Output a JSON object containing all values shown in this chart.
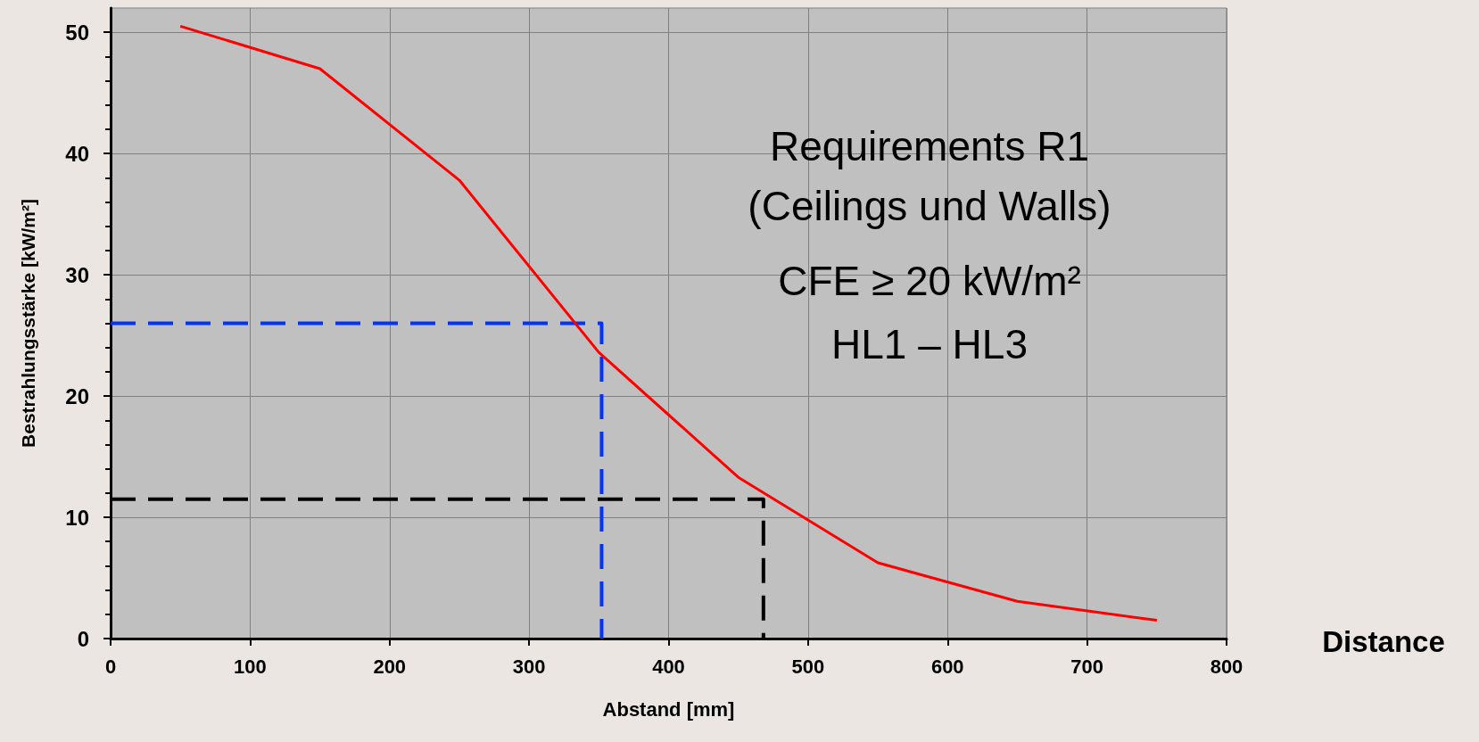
{
  "chart_data": {
    "type": "line",
    "xlabel": "Abstand [mm]",
    "ylabel": "Bestrahlungsstärke [kW/m²]",
    "xlim": [
      0,
      800
    ],
    "xticks": [
      0,
      100,
      200,
      300,
      400,
      500,
      600,
      700,
      800
    ],
    "ylim": [
      0,
      52
    ],
    "yticks": [
      0,
      10,
      20,
      30,
      40,
      50
    ],
    "grid": true,
    "marker": "none",
    "series": [
      {
        "color": "#ff0000",
        "line_style": "solid",
        "x": [
          50,
          150,
          250,
          350,
          450,
          550,
          650,
          750
        ],
        "values": [
          50.5,
          47,
          37.8,
          23.6,
          13.3,
          6.25,
          3.07,
          1.5
        ]
      },
      {
        "color": "#0033ff",
        "line_style": "dashed",
        "x": [
          0,
          352,
          352
        ],
        "values": [
          26,
          26,
          0
        ]
      },
      {
        "color": "#000000",
        "line_style": "dashed",
        "x": [
          0,
          468,
          468
        ],
        "values": [
          11.5,
          11.5,
          0
        ]
      }
    ],
    "annotations": [
      "Requirements R1",
      "(Ceilings und Walls)",
      "CFE ≥ 20 kW/m²",
      "HL1 – HL3",
      "Distance"
    ]
  }
}
